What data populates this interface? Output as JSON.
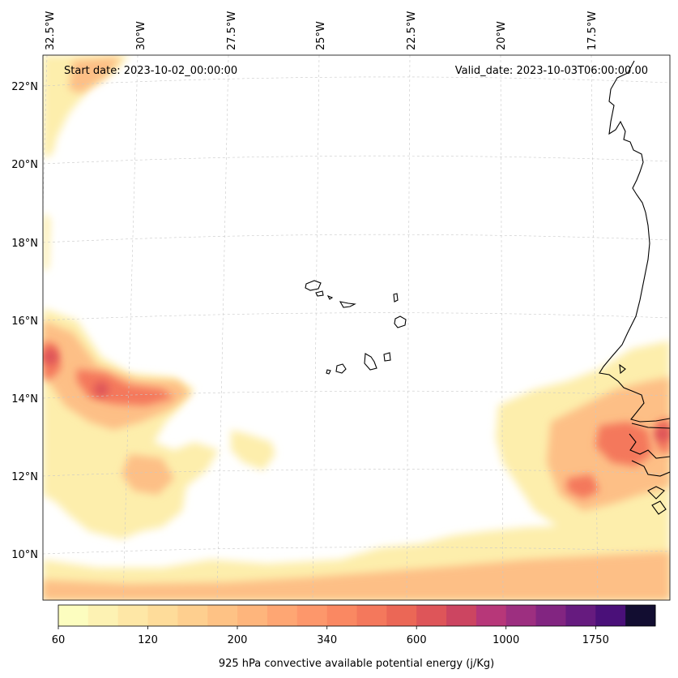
{
  "map": {
    "start_label": "Start date: 2023-10-02_00:00:00",
    "valid_label": "Valid_date: 2023-10-03T06:00:00.00",
    "lon_labels": [
      "32.5°W",
      "30°W",
      "27.5°W",
      "25°W",
      "22.5°W",
      "20°W",
      "17.5°W"
    ],
    "lat_labels": [
      "22°N",
      "20°N",
      "18°N",
      "16°N",
      "14°N",
      "12°N",
      "10°N"
    ]
  },
  "colorbar": {
    "title": "925 hPa convective available potential energy (j/Kg)",
    "tick_labels": [
      "60",
      "120",
      "200",
      "340",
      "600",
      "1000",
      "1750"
    ],
    "colors": [
      "#fcfdbf",
      "#fdf2b3",
      "#fee7a6",
      "#fedc9a",
      "#fecf8f",
      "#fec285",
      "#feb57c",
      "#fea673",
      "#fd976b",
      "#fa8862",
      "#f4785c",
      "#eb6756",
      "#de5559",
      "#cc4561",
      "#b73779",
      "#9d2f80",
      "#822581",
      "#661b7f",
      "#4a1079",
      "#120d31"
    ]
  }
}
